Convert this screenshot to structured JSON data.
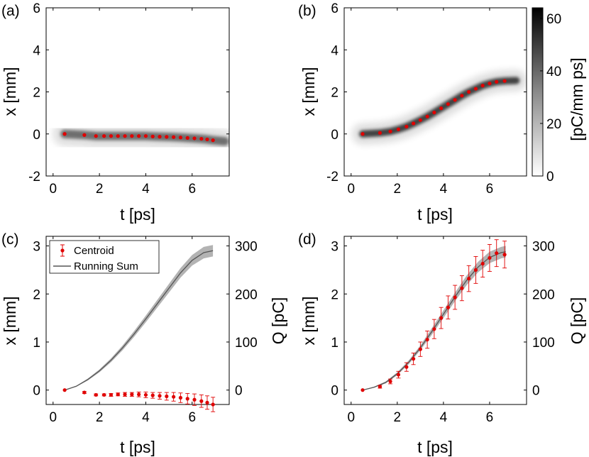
{
  "figure": {
    "colors": {
      "centroid": "#e00000",
      "running_sum": "#555555",
      "band": "#9a9a9a",
      "axis": "#000000"
    }
  },
  "chart_data": [
    {
      "panel": "a",
      "type": "heatmap",
      "panel_label": "(a)",
      "xlabel": "t [ps]",
      "ylabel": "x [mm]",
      "xlim": [
        -0.3,
        7.6
      ],
      "ylim": [
        -2,
        6
      ],
      "xticks": [
        "0",
        "2",
        "4",
        "6"
      ],
      "xtick_values": [
        0,
        2,
        4,
        6
      ],
      "yticks": [
        "-2",
        "0",
        "2",
        "4",
        "6"
      ],
      "ytick_values": [
        -2,
        0,
        2,
        4,
        6
      ],
      "centroid": {
        "t": [
          0.5,
          1.35,
          1.85,
          2.2,
          2.5,
          2.8,
          3.1,
          3.4,
          3.7,
          4.0,
          4.3,
          4.6,
          4.9,
          5.2,
          5.5,
          5.8,
          6.1,
          6.4,
          6.65,
          6.9
        ],
        "x": [
          0.0,
          -0.05,
          -0.1,
          -0.1,
          -0.1,
          -0.1,
          -0.1,
          -0.1,
          -0.1,
          -0.1,
          -0.12,
          -0.13,
          -0.14,
          -0.15,
          -0.17,
          -0.19,
          -0.21,
          -0.23,
          -0.26,
          -0.3
        ]
      },
      "density_note": "gray beam following centroid, spread grows with t"
    },
    {
      "panel": "b",
      "type": "heatmap",
      "panel_label": "(b)",
      "xlabel": "t [ps]",
      "ylabel": "x [mm]",
      "xlim": [
        -0.3,
        7.6
      ],
      "ylim": [
        -2,
        6
      ],
      "xticks": [
        "0",
        "2",
        "4",
        "6"
      ],
      "xtick_values": [
        0,
        2,
        4,
        6
      ],
      "yticks": [
        "-2",
        "0",
        "2",
        "4",
        "6"
      ],
      "ytick_values": [
        -2,
        0,
        2,
        4,
        6
      ],
      "colorbar": {
        "label": "[pC/mm ps]",
        "range": [
          0,
          64
        ],
        "ticks": [
          "0",
          "20",
          "40",
          "60"
        ],
        "tick_values": [
          0,
          20,
          40,
          60
        ]
      },
      "centroid": {
        "t": [
          0.5,
          1.25,
          1.7,
          2.05,
          2.4,
          2.7,
          3.0,
          3.3,
          3.6,
          3.9,
          4.2,
          4.5,
          4.8,
          5.1,
          5.4,
          5.7,
          6.0,
          6.3,
          6.65
        ],
        "x": [
          0.0,
          0.05,
          0.12,
          0.22,
          0.35,
          0.5,
          0.66,
          0.83,
          1.02,
          1.22,
          1.42,
          1.62,
          1.82,
          2.0,
          2.15,
          2.3,
          2.4,
          2.48,
          2.52
        ]
      },
      "density_note": "dark core along centroid around t=3-4"
    },
    {
      "panel": "c",
      "type": "scatter",
      "panel_label": "(c)",
      "xlabel": "t [ps]",
      "ylabel": "x [mm]",
      "y2label": "Q [pC]",
      "xlim": [
        -0.3,
        7.6
      ],
      "ylim": [
        -0.3,
        3.2
      ],
      "y2lim": [
        -30,
        320
      ],
      "xticks": [
        "0",
        "2",
        "4",
        "6"
      ],
      "xtick_values": [
        0,
        2,
        4,
        6
      ],
      "yticks": [
        "0",
        "1",
        "2",
        "3"
      ],
      "ytick_values": [
        0,
        1,
        2,
        3
      ],
      "y2ticks": [
        "0",
        "100",
        "200",
        "300"
      ],
      "y2tick_values": [
        0,
        100,
        200,
        300
      ],
      "legend": {
        "position": "top-left",
        "entries": [
          "Centroid",
          "Running Sum"
        ]
      },
      "series": [
        {
          "name": "Centroid",
          "axis": "left",
          "t": [
            0.5,
            1.35,
            1.85,
            2.2,
            2.5,
            2.8,
            3.1,
            3.4,
            3.7,
            4.0,
            4.3,
            4.6,
            4.9,
            5.2,
            5.5,
            5.8,
            6.1,
            6.4,
            6.65,
            6.9
          ],
          "x": [
            0.0,
            -0.05,
            -0.1,
            -0.1,
            -0.1,
            -0.09,
            -0.09,
            -0.09,
            -0.09,
            -0.1,
            -0.11,
            -0.12,
            -0.13,
            -0.14,
            -0.16,
            -0.18,
            -0.2,
            -0.23,
            -0.26,
            -0.3
          ],
          "err": [
            0.0,
            0.02,
            0.02,
            0.02,
            0.03,
            0.03,
            0.04,
            0.04,
            0.05,
            0.06,
            0.06,
            0.07,
            0.08,
            0.09,
            0.1,
            0.11,
            0.12,
            0.13,
            0.14,
            0.15
          ]
        },
        {
          "name": "Running Sum",
          "axis": "right",
          "t": [
            0.5,
            1.0,
            1.5,
            2.0,
            2.5,
            3.0,
            3.5,
            4.0,
            4.5,
            5.0,
            5.5,
            6.0,
            6.5,
            6.9
          ],
          "q": [
            0,
            8,
            22,
            40,
            62,
            88,
            117,
            148,
            180,
            212,
            244,
            270,
            286,
            290
          ],
          "band": [
            0,
            1,
            2,
            3,
            4,
            5,
            6,
            7,
            8,
            9,
            10,
            11,
            12,
            12
          ]
        }
      ]
    },
    {
      "panel": "d",
      "type": "scatter",
      "panel_label": "(d)",
      "xlabel": "t [ps]",
      "ylabel": "x [mm]",
      "y2label": "Q [pC]",
      "xlim": [
        -0.3,
        7.6
      ],
      "ylim": [
        -0.3,
        3.2
      ],
      "y2lim": [
        -30,
        320
      ],
      "xticks": [
        "0",
        "2",
        "4",
        "6"
      ],
      "xtick_values": [
        0,
        2,
        4,
        6
      ],
      "yticks": [
        "0",
        "1",
        "2",
        "3"
      ],
      "ytick_values": [
        0,
        1,
        2,
        3
      ],
      "y2ticks": [
        "0",
        "100",
        "200",
        "300"
      ],
      "y2tick_values": [
        0,
        100,
        200,
        300
      ],
      "series": [
        {
          "name": "Centroid",
          "axis": "left",
          "t": [
            0.5,
            1.25,
            1.7,
            2.05,
            2.4,
            2.7,
            3.0,
            3.3,
            3.6,
            3.9,
            4.2,
            4.5,
            4.8,
            5.1,
            5.4,
            5.7,
            6.0,
            6.3,
            6.65
          ],
          "x": [
            0.0,
            0.07,
            0.18,
            0.32,
            0.48,
            0.65,
            0.85,
            1.05,
            1.27,
            1.5,
            1.72,
            1.93,
            2.12,
            2.32,
            2.5,
            2.63,
            2.75,
            2.85,
            2.82
          ],
          "err": [
            0.0,
            0.03,
            0.05,
            0.07,
            0.09,
            0.12,
            0.15,
            0.18,
            0.2,
            0.22,
            0.24,
            0.25,
            0.26,
            0.27,
            0.28,
            0.28,
            0.28,
            0.28,
            0.28
          ]
        },
        {
          "name": "Running Sum",
          "axis": "right",
          "t": [
            0.5,
            1.0,
            1.5,
            2.0,
            2.5,
            3.0,
            3.5,
            4.0,
            4.5,
            5.0,
            5.5,
            6.0,
            6.5,
            6.7
          ],
          "q": [
            0,
            6,
            16,
            34,
            58,
            88,
            122,
            158,
            194,
            228,
            256,
            276,
            286,
            288
          ],
          "band": [
            0,
            1,
            2,
            3,
            4,
            5,
            7,
            8,
            9,
            10,
            11,
            12,
            12,
            12
          ]
        }
      ]
    }
  ]
}
